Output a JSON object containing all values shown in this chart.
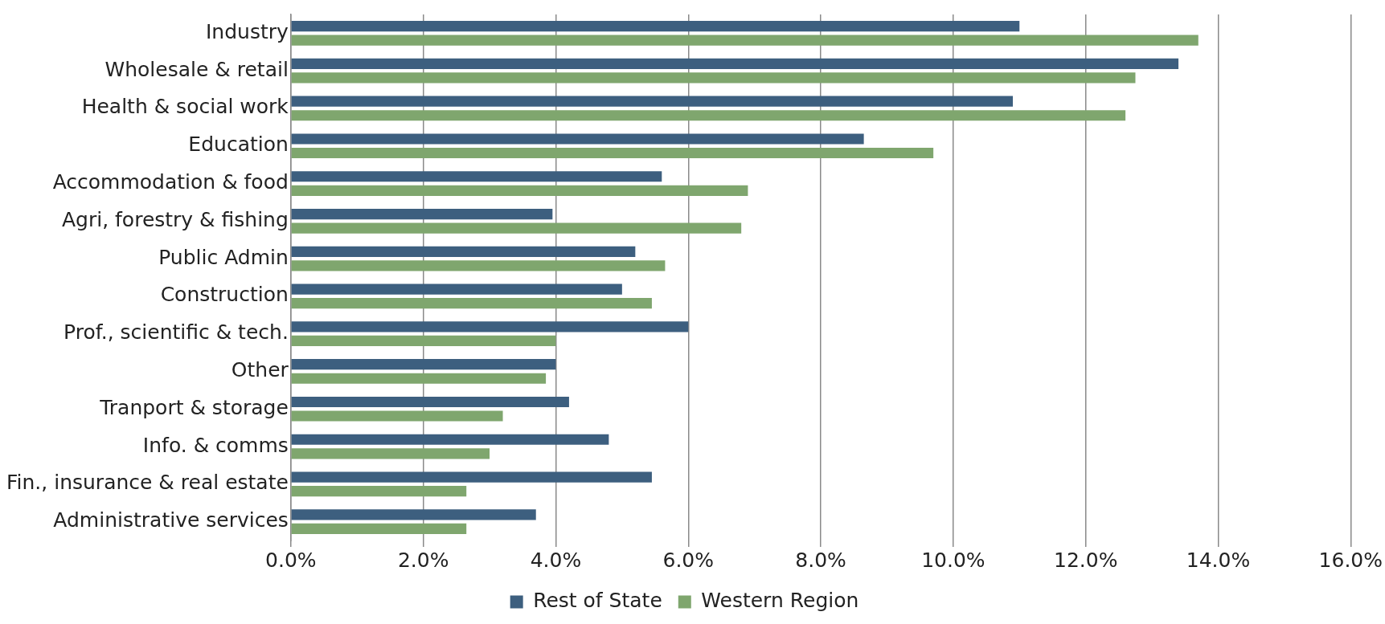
{
  "chart_data": {
    "type": "bar",
    "orientation": "horizontal",
    "categories": [
      "Industry",
      "Wholesale & retail",
      "Health & social work",
      "Education",
      "Accommodation & food",
      "Agri, forestry & fishing",
      "Public Admin",
      "Construction",
      "Prof., scientific & tech.",
      "Other",
      "Tranport & storage",
      "Info. & comms",
      "Fin., insurance & real estate",
      "Administrative services"
    ],
    "series": [
      {
        "name": "Rest of State",
        "color": "#3d5f7f",
        "values": [
          11.0,
          13.4,
          10.9,
          8.65,
          5.6,
          3.95,
          5.2,
          5.0,
          6.0,
          4.0,
          4.2,
          4.8,
          5.45,
          3.7
        ]
      },
      {
        "name": "Western Region",
        "color": "#7fa66e",
        "values": [
          13.7,
          12.75,
          12.6,
          9.7,
          6.9,
          6.8,
          5.65,
          5.45,
          4.0,
          3.85,
          3.2,
          3.0,
          2.65,
          2.65
        ]
      }
    ],
    "xlim": [
      0,
      16
    ],
    "xticks": [
      {
        "value": 0,
        "label": "0.0%"
      },
      {
        "value": 2,
        "label": "2.0%"
      },
      {
        "value": 4,
        "label": "4.0%"
      },
      {
        "value": 6,
        "label": "6.0%"
      },
      {
        "value": 8,
        "label": "8.0%"
      },
      {
        "value": 10,
        "label": "10.0%"
      },
      {
        "value": 12,
        "label": "12.0%"
      },
      {
        "value": 14,
        "label": "14.0%"
      },
      {
        "value": 16,
        "label": "16.0%"
      }
    ],
    "grid": "x",
    "legend": "bottom"
  }
}
